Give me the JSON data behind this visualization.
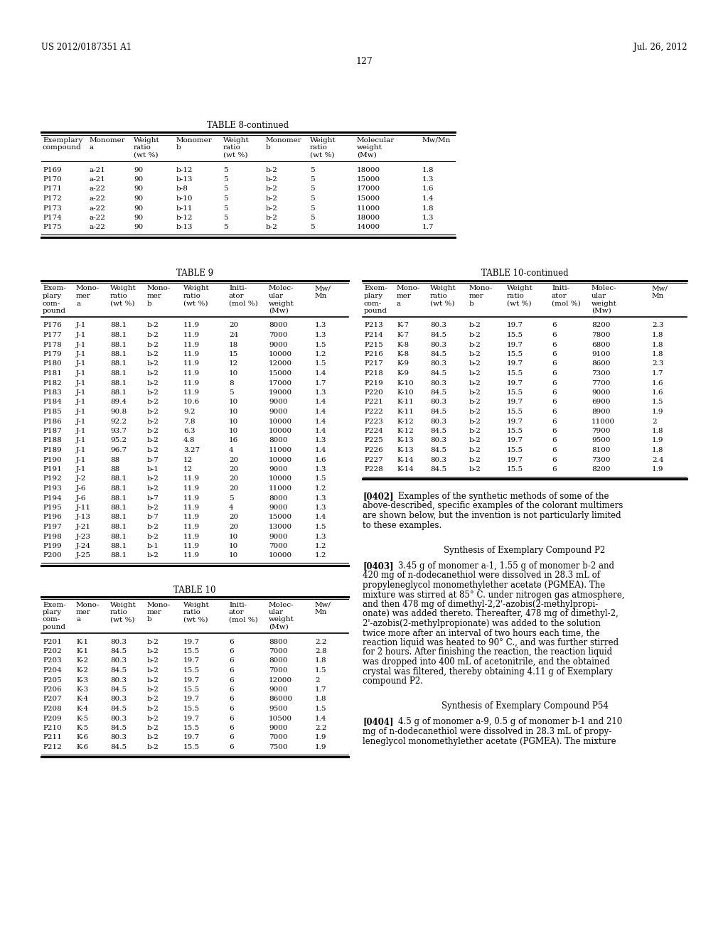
{
  "page_number": "127",
  "left_header": "US 2012/0187351 A1",
  "right_header": "Jul. 26, 2012",
  "background_color": "#ffffff",
  "table8_continued": {
    "title": "TABLE 8-continued",
    "rows": [
      [
        "P169",
        "a-21",
        "90",
        "b-12",
        "5",
        "b-2",
        "5",
        "18000",
        "1.8"
      ],
      [
        "P170",
        "a-21",
        "90",
        "b-13",
        "5",
        "b-2",
        "5",
        "15000",
        "1.3"
      ],
      [
        "P171",
        "a-22",
        "90",
        "b-8",
        "5",
        "b-2",
        "5",
        "17000",
        "1.6"
      ],
      [
        "P172",
        "a-22",
        "90",
        "b-10",
        "5",
        "b-2",
        "5",
        "15000",
        "1.4"
      ],
      [
        "P173",
        "a-22",
        "90",
        "b-11",
        "5",
        "b-2",
        "5",
        "11000",
        "1.8"
      ],
      [
        "P174",
        "a-22",
        "90",
        "b-12",
        "5",
        "b-2",
        "5",
        "18000",
        "1.3"
      ],
      [
        "P175",
        "a-22",
        "90",
        "b-13",
        "5",
        "b-2",
        "5",
        "14000",
        "1.7"
      ]
    ]
  },
  "table9": {
    "title": "TABLE 9",
    "rows": [
      [
        "P176",
        "J-1",
        "88.1",
        "b-2",
        "11.9",
        "20",
        "8000",
        "1.3"
      ],
      [
        "P177",
        "J-1",
        "88.1",
        "b-2",
        "11.9",
        "24",
        "7000",
        "1.3"
      ],
      [
        "P178",
        "J-1",
        "88.1",
        "b-2",
        "11.9",
        "18",
        "9000",
        "1.5"
      ],
      [
        "P179",
        "J-1",
        "88.1",
        "b-2",
        "11.9",
        "15",
        "10000",
        "1.2"
      ],
      [
        "P180",
        "J-1",
        "88.1",
        "b-2",
        "11.9",
        "12",
        "12000",
        "1.5"
      ],
      [
        "P181",
        "J-1",
        "88.1",
        "b-2",
        "11.9",
        "10",
        "15000",
        "1.4"
      ],
      [
        "P182",
        "J-1",
        "88.1",
        "b-2",
        "11.9",
        "8",
        "17000",
        "1.7"
      ],
      [
        "P183",
        "J-1",
        "88.1",
        "b-2",
        "11.9",
        "5",
        "19000",
        "1.3"
      ],
      [
        "P184",
        "J-1",
        "89.4",
        "b-2",
        "10.6",
        "10",
        "9000",
        "1.4"
      ],
      [
        "P185",
        "J-1",
        "90.8",
        "b-2",
        "9.2",
        "10",
        "9000",
        "1.4"
      ],
      [
        "P186",
        "J-1",
        "92.2",
        "b-2",
        "7.8",
        "10",
        "10000",
        "1.4"
      ],
      [
        "P187",
        "J-1",
        "93.7",
        "b-2",
        "6.3",
        "10",
        "10000",
        "1.4"
      ],
      [
        "P188",
        "J-1",
        "95.2",
        "b-2",
        "4.8",
        "16",
        "8000",
        "1.3"
      ],
      [
        "P189",
        "J-1",
        "96.7",
        "b-2",
        "3.27",
        "4",
        "11000",
        "1.4"
      ],
      [
        "P190",
        "J-1",
        "88",
        "b-7",
        "12",
        "20",
        "10000",
        "1.6"
      ],
      [
        "P191",
        "J-1",
        "88",
        "b-1",
        "12",
        "20",
        "9000",
        "1.3"
      ],
      [
        "P192",
        "J-2",
        "88.1",
        "b-2",
        "11.9",
        "20",
        "10000",
        "1.5"
      ],
      [
        "P193",
        "J-6",
        "88.1",
        "b-2",
        "11.9",
        "20",
        "11000",
        "1.2"
      ],
      [
        "P194",
        "J-6",
        "88.1",
        "b-7",
        "11.9",
        "5",
        "8000",
        "1.3"
      ],
      [
        "P195",
        "J-11",
        "88.1",
        "b-2",
        "11.9",
        "4",
        "9000",
        "1.3"
      ],
      [
        "P196",
        "J-13",
        "88.1",
        "b-7",
        "11.9",
        "20",
        "15000",
        "1.4"
      ],
      [
        "P197",
        "J-21",
        "88.1",
        "b-2",
        "11.9",
        "20",
        "13000",
        "1.5"
      ],
      [
        "P198",
        "J-23",
        "88.1",
        "b-2",
        "11.9",
        "10",
        "9000",
        "1.3"
      ],
      [
        "P199",
        "J-24",
        "88.1",
        "b-1",
        "11.9",
        "10",
        "7000",
        "1.2"
      ],
      [
        "P200",
        "J-25",
        "88.1",
        "b-2",
        "11.9",
        "10",
        "10000",
        "1.2"
      ]
    ]
  },
  "table10_continued": {
    "title": "TABLE 10-continued",
    "rows": [
      [
        "P213",
        "K-7",
        "80.3",
        "b-2",
        "19.7",
        "6",
        "8200",
        "2.3"
      ],
      [
        "P214",
        "K-7",
        "84.5",
        "b-2",
        "15.5",
        "6",
        "7800",
        "1.8"
      ],
      [
        "P215",
        "K-8",
        "80.3",
        "b-2",
        "19.7",
        "6",
        "6800",
        "1.8"
      ],
      [
        "P216",
        "K-8",
        "84.5",
        "b-2",
        "15.5",
        "6",
        "9100",
        "1.8"
      ],
      [
        "P217",
        "K-9",
        "80.3",
        "b-2",
        "19.7",
        "6",
        "8600",
        "2.3"
      ],
      [
        "P218",
        "K-9",
        "84.5",
        "b-2",
        "15.5",
        "6",
        "7300",
        "1.7"
      ],
      [
        "P219",
        "K-10",
        "80.3",
        "b-2",
        "19.7",
        "6",
        "7700",
        "1.6"
      ],
      [
        "P220",
        "K-10",
        "84.5",
        "b-2",
        "15.5",
        "6",
        "9000",
        "1.6"
      ],
      [
        "P221",
        "K-11",
        "80.3",
        "b-2",
        "19.7",
        "6",
        "6900",
        "1.5"
      ],
      [
        "P222",
        "K-11",
        "84.5",
        "b-2",
        "15.5",
        "6",
        "8900",
        "1.9"
      ],
      [
        "P223",
        "K-12",
        "80.3",
        "b-2",
        "19.7",
        "6",
        "11000",
        "2"
      ],
      [
        "P224",
        "K-12",
        "84.5",
        "b-2",
        "15.5",
        "6",
        "7900",
        "1.8"
      ],
      [
        "P225",
        "K-13",
        "80.3",
        "b-2",
        "19.7",
        "6",
        "9500",
        "1.9"
      ],
      [
        "P226",
        "K-13",
        "84.5",
        "b-2",
        "15.5",
        "6",
        "8100",
        "1.8"
      ],
      [
        "P227",
        "K-14",
        "80.3",
        "b-2",
        "19.7",
        "6",
        "7300",
        "2.4"
      ],
      [
        "P228",
        "K-14",
        "84.5",
        "b-2",
        "15.5",
        "6",
        "8200",
        "1.9"
      ]
    ]
  },
  "table10": {
    "title": "TABLE 10",
    "rows": [
      [
        "P201",
        "K-1",
        "80.3",
        "b-2",
        "19.7",
        "6",
        "8800",
        "2.2"
      ],
      [
        "P202",
        "K-1",
        "84.5",
        "b-2",
        "15.5",
        "6",
        "7000",
        "2.8"
      ],
      [
        "P203",
        "K-2",
        "80.3",
        "b-2",
        "19.7",
        "6",
        "8000",
        "1.8"
      ],
      [
        "P204",
        "K-2",
        "84.5",
        "b-2",
        "15.5",
        "6",
        "7000",
        "1.5"
      ],
      [
        "P205",
        "K-3",
        "80.3",
        "b-2",
        "19.7",
        "6",
        "12000",
        "2"
      ],
      [
        "P206",
        "K-3",
        "84.5",
        "b-2",
        "15.5",
        "6",
        "9000",
        "1.7"
      ],
      [
        "P207",
        "K-4",
        "80.3",
        "b-2",
        "19.7",
        "6",
        "86000",
        "1.8"
      ],
      [
        "P208",
        "K-4",
        "84.5",
        "b-2",
        "15.5",
        "6",
        "9500",
        "1.5"
      ],
      [
        "P209",
        "K-5",
        "80.3",
        "b-2",
        "19.7",
        "6",
        "10500",
        "1.4"
      ],
      [
        "P210",
        "K-5",
        "84.5",
        "b-2",
        "15.5",
        "6",
        "9000",
        "2.2"
      ],
      [
        "P211",
        "K-6",
        "80.3",
        "b-2",
        "19.7",
        "6",
        "7000",
        "1.9"
      ],
      [
        "P212",
        "K-6",
        "84.5",
        "b-2",
        "15.5",
        "6",
        "7500",
        "1.9"
      ]
    ]
  },
  "para0402": {
    "tag": "[0402]",
    "lines": [
      "Examples of the synthetic methods of some of the",
      "above-described, specific examples of the colorant multimers",
      "are shown below, but the invention is not particularly limited",
      "to these examples."
    ]
  },
  "synthesis1_title": "Synthesis of Exemplary Compound P2",
  "para0403": {
    "tag": "[0403]",
    "lines": [
      "3.45 g of monomer a-1, 1.55 g of monomer b-2 and",
      "420 mg of n-dodecanethiol were dissolved in 28.3 mL of",
      "propyleneglycol monomethylether acetate (PGMEA). The",
      "mixture was stirred at 85° C. under nitrogen gas atmosphere,",
      "and then 478 mg of dimethyl-2,2'-azobis(2-methylpropi-",
      "onate) was added thereto. Thereafter, 478 mg of dimethyl-2,",
      "2'-azobis(2-methylpropionate) was added to the solution",
      "twice more after an interval of two hours each time, the",
      "reaction liquid was heated to 90° C., and was further stirred",
      "for 2 hours. After finishing the reaction, the reaction liquid",
      "was dropped into 400 mL of acetonitrile, and the obtained",
      "crystal was filtered, thereby obtaining 4.11 g of Exemplary",
      "compound P2."
    ]
  },
  "synthesis2_title": "Synthesis of Exemplary Compound P54",
  "para0404": {
    "tag": "[0404]",
    "lines": [
      "4.5 g of monomer a-9, 0.5 g of monomer b-1 and 210",
      "mg of n-dodecanethiol were dissolved in 28.3 mL of propy-",
      "leneglycol monomethylether acetate (PGMEA). The mixture"
    ]
  }
}
